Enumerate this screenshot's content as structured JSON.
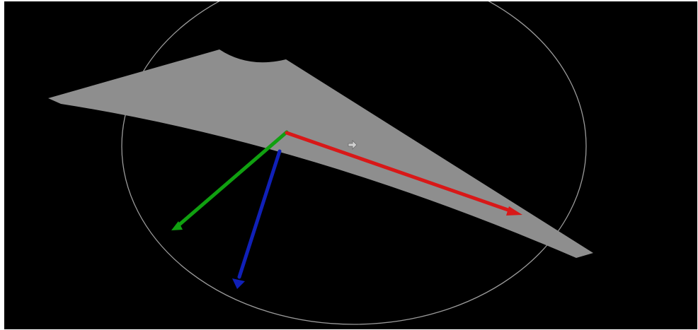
{
  "viewport": {
    "background_color": "#000000",
    "surface_color": "#8e8e8e",
    "gizmo_ring_color": "#9a9a9a",
    "cursor_icon": "move-cursor-icon"
  },
  "gizmo": {
    "axes": [
      {
        "name": "x-axis",
        "color": "#d81818"
      },
      {
        "name": "y-axis",
        "color": "#10a010"
      },
      {
        "name": "z-axis",
        "color": "#1020b8"
      }
    ]
  }
}
